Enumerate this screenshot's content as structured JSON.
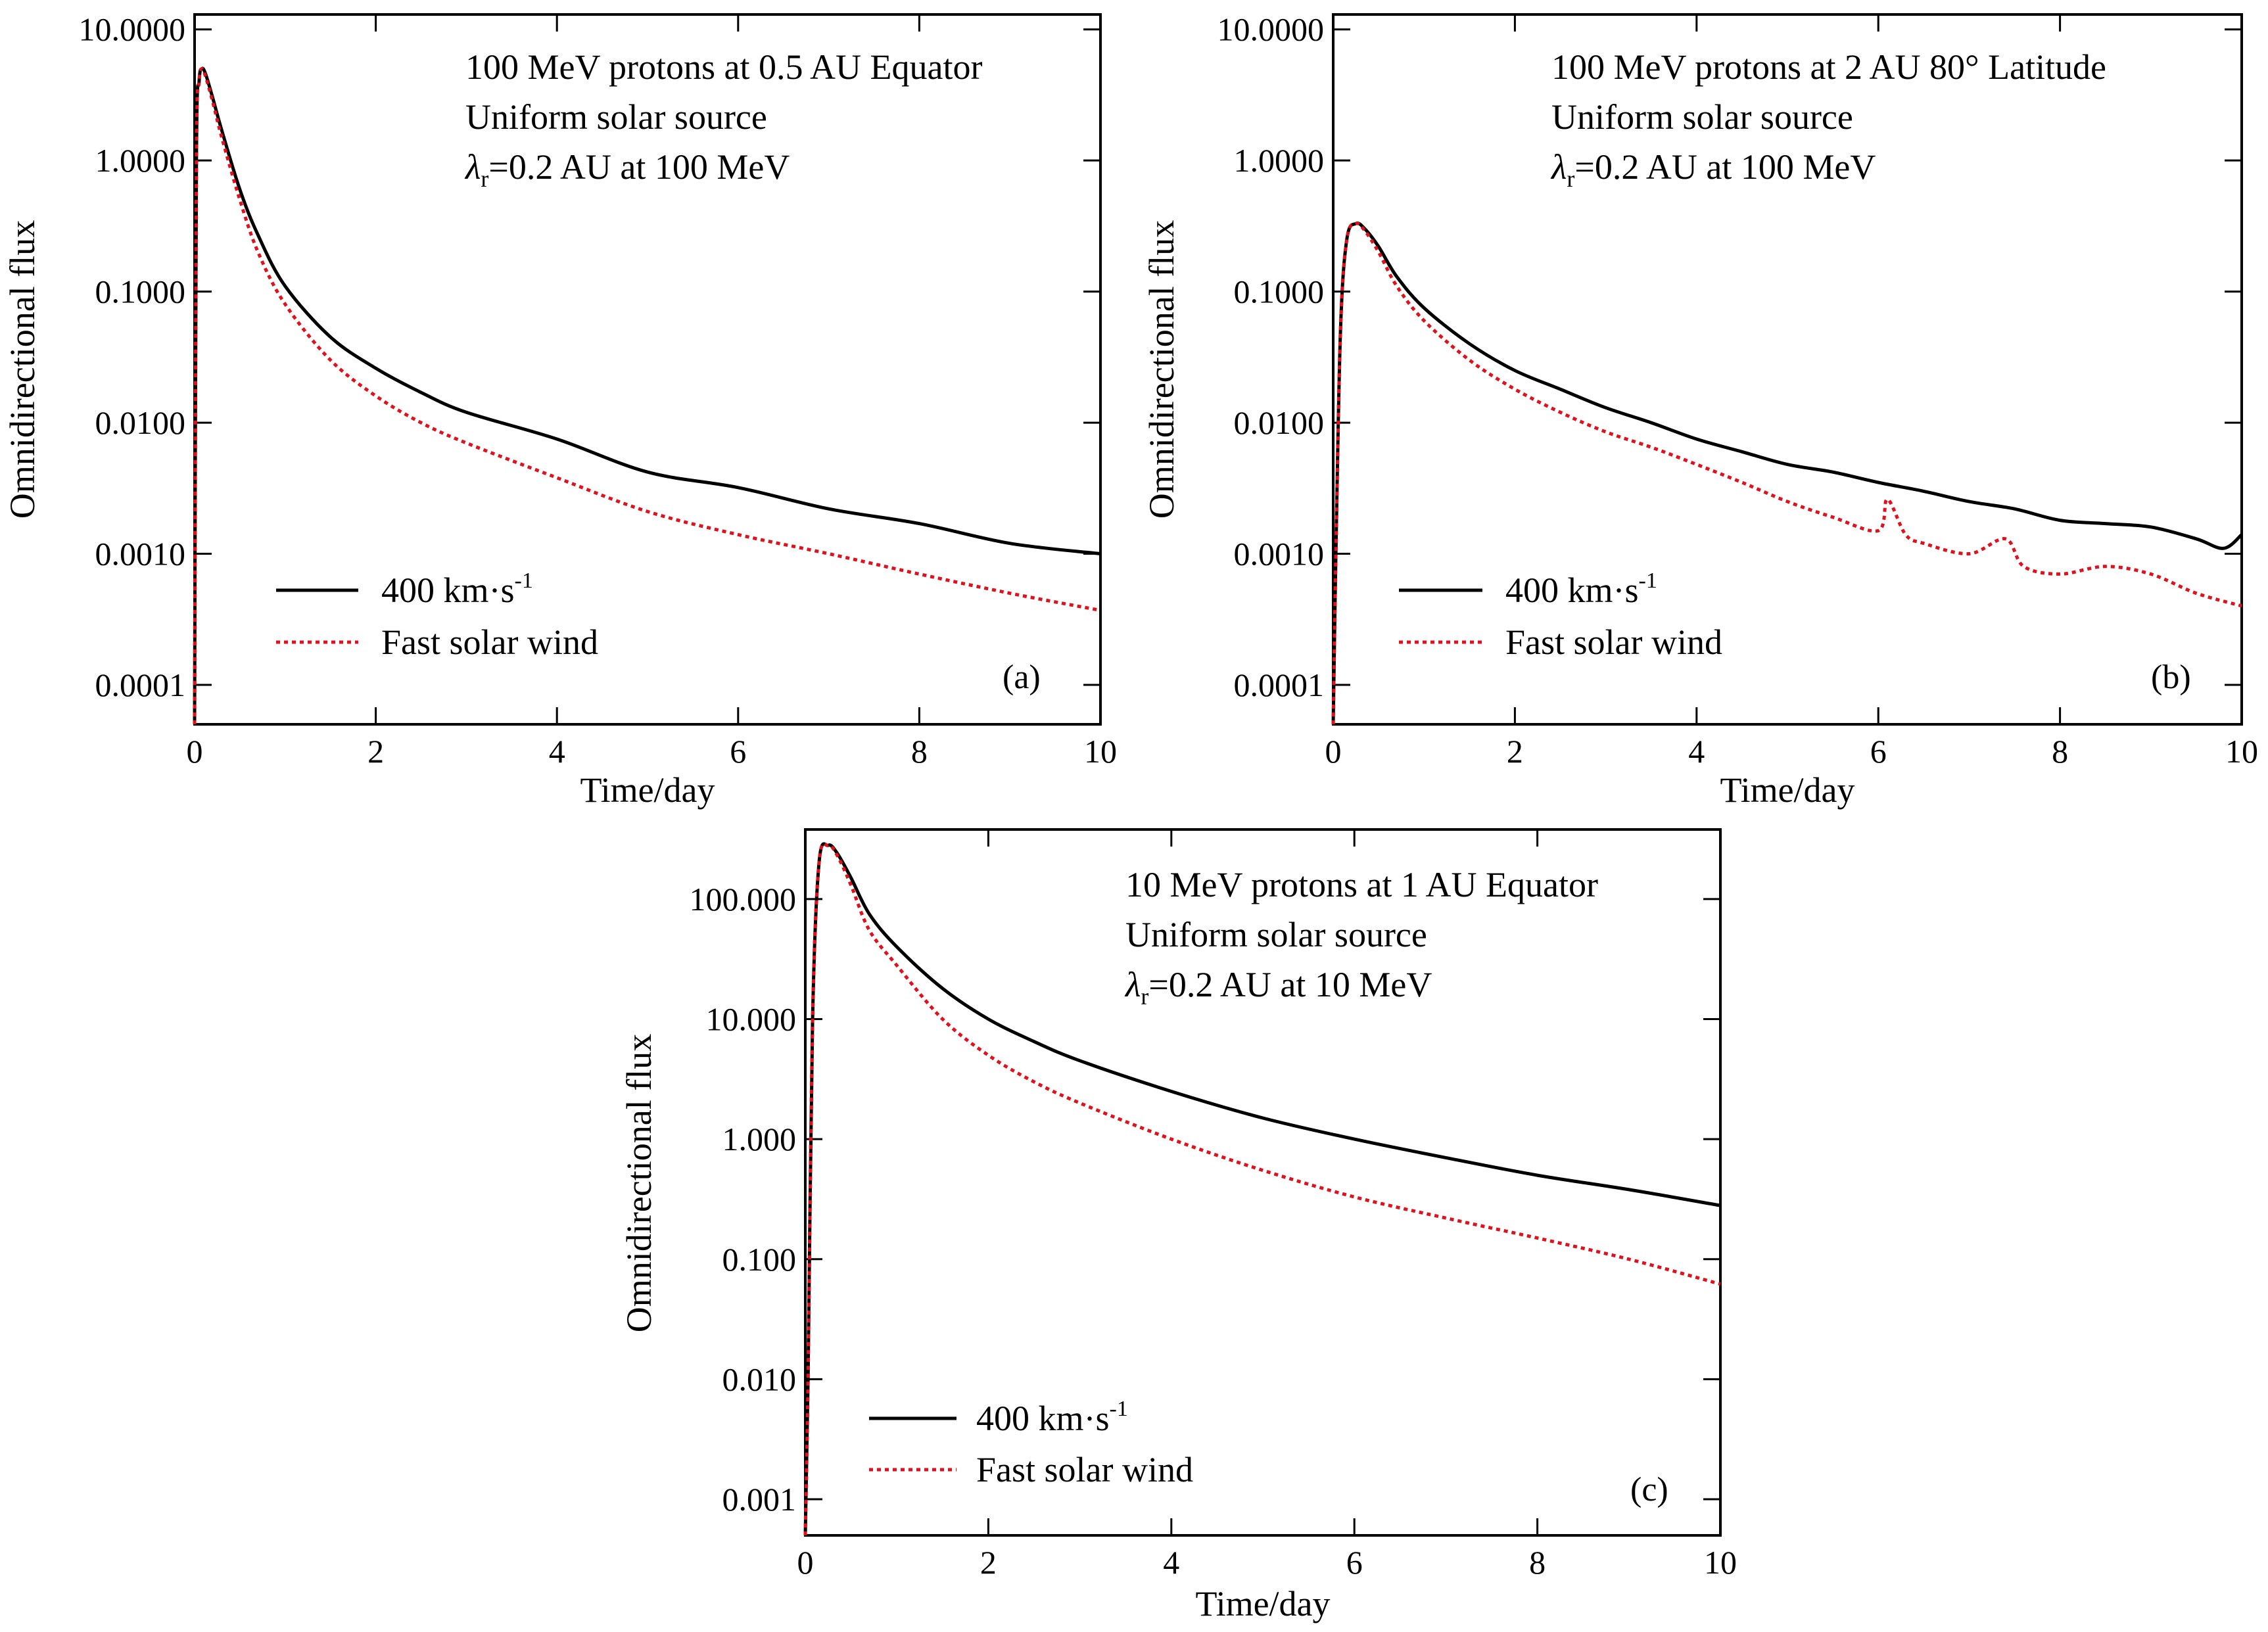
{
  "chart_data": [
    {
      "id": "a",
      "type": "line",
      "yscale": "log",
      "xlim": [
        0,
        10
      ],
      "ylim": [
        5e-05,
        13
      ],
      "xticks": [
        0,
        2,
        4,
        6,
        8,
        10
      ],
      "xtick_labels": [
        "0",
        "2",
        "4",
        "6",
        "8",
        "10"
      ],
      "yticks": [
        10,
        1,
        0.1,
        0.01,
        0.001,
        0.0001
      ],
      "ytick_labels": [
        "10.0000",
        "1.0000",
        "0.1000",
        "0.0100",
        "0.0010",
        "0.0001"
      ],
      "xlabel": "Time/day",
      "ylabel": "Omnidirectional flux",
      "annotation": {
        "line1": "100 MeV protons at 0.5 AU Equator",
        "line2": "Uniform solar source",
        "line3_symbol": "λ",
        "line3_sub": "r",
        "line3_rest": "=0.2 AU at 100 MeV"
      },
      "legend": {
        "solid_label_main": "400 km·s",
        "solid_label_sup": "-1",
        "dotted_label": "Fast solar wind"
      },
      "panel_label": "(a)",
      "series": [
        {
          "name": "400 km·s-1",
          "color": "#000000",
          "style": "solid",
          "x": [
            0.0,
            0.02,
            0.05,
            0.08,
            0.12,
            0.2,
            0.3,
            0.5,
            0.7,
            1.0,
            1.5,
            2.0,
            2.5,
            3.0,
            4.0,
            5.0,
            6.0,
            7.0,
            8.0,
            9.0,
            10.0
          ],
          "y": [
            5e-05,
            1.0,
            4.0,
            5.0,
            4.6,
            3.0,
            1.7,
            0.6,
            0.27,
            0.11,
            0.045,
            0.026,
            0.017,
            0.012,
            0.0075,
            0.0042,
            0.0032,
            0.0022,
            0.0017,
            0.0012,
            0.001
          ]
        },
        {
          "name": "Fast solar wind",
          "color": "#e0101c",
          "style": "dotted",
          "x": [
            0.0,
            0.02,
            0.05,
            0.08,
            0.12,
            0.2,
            0.3,
            0.5,
            0.7,
            1.0,
            1.5,
            2.0,
            2.5,
            3.0,
            4.0,
            5.0,
            6.0,
            7.0,
            8.0,
            9.0,
            10.0
          ],
          "y": [
            5e-05,
            1.0,
            4.0,
            5.0,
            4.4,
            2.8,
            1.5,
            0.5,
            0.2,
            0.08,
            0.03,
            0.016,
            0.01,
            0.007,
            0.0038,
            0.0021,
            0.0014,
            0.001,
            0.0007,
            0.0005,
            0.00037
          ]
        }
      ]
    },
    {
      "id": "b",
      "type": "line",
      "yscale": "log",
      "xlim": [
        0,
        10
      ],
      "ylim": [
        5e-05,
        13
      ],
      "xticks": [
        0,
        2,
        4,
        6,
        8,
        10
      ],
      "xtick_labels": [
        "0",
        "2",
        "4",
        "6",
        "8",
        "10"
      ],
      "yticks": [
        10,
        1,
        0.1,
        0.01,
        0.001,
        0.0001
      ],
      "ytick_labels": [
        "10.0000",
        "1.0000",
        "0.1000",
        "0.0100",
        "0.0010",
        "0.0001"
      ],
      "xlabel": "Time/day",
      "ylabel": "Omnidirectional flux",
      "annotation": {
        "line1": "100 MeV protons at 2 AU 80° Latitude",
        "line2": "Uniform solar source",
        "line3_symbol": "λ",
        "line3_sub": "r",
        "line3_rest": "=0.2 AU at 100 MeV"
      },
      "legend": {
        "solid_label_main": "400 km·s",
        "solid_label_sup": "-1",
        "dotted_label": "Fast solar wind"
      },
      "panel_label": "(b)",
      "series": [
        {
          "name": "400 km·s-1",
          "color": "#000000",
          "style": "solid",
          "x": [
            0.0,
            0.03,
            0.08,
            0.15,
            0.25,
            0.35,
            0.5,
            0.7,
            1.0,
            1.5,
            2.0,
            2.5,
            3.0,
            3.5,
            4.0,
            4.5,
            5.0,
            5.5,
            6.0,
            6.5,
            7.0,
            7.5,
            8.0,
            8.5,
            9.0,
            9.5,
            9.8,
            10.0
          ],
          "y": [
            5e-05,
            0.001,
            0.05,
            0.25,
            0.33,
            0.3,
            0.22,
            0.13,
            0.075,
            0.04,
            0.025,
            0.018,
            0.013,
            0.01,
            0.0075,
            0.006,
            0.0048,
            0.0042,
            0.0035,
            0.003,
            0.0025,
            0.0022,
            0.0018,
            0.0017,
            0.0016,
            0.0013,
            0.0011,
            0.0014
          ]
        },
        {
          "name": "Fast solar wind",
          "color": "#e0101c",
          "style": "dotted",
          "x": [
            0.0,
            0.03,
            0.08,
            0.15,
            0.25,
            0.35,
            0.5,
            0.7,
            1.0,
            1.5,
            2.0,
            2.5,
            3.0,
            3.5,
            4.0,
            4.5,
            5.0,
            5.5,
            6.0,
            6.1,
            6.3,
            6.5,
            7.0,
            7.4,
            7.6,
            8.0,
            8.5,
            9.0,
            9.5,
            10.0
          ],
          "y": [
            5e-05,
            0.001,
            0.05,
            0.25,
            0.33,
            0.29,
            0.2,
            0.11,
            0.06,
            0.03,
            0.018,
            0.012,
            0.0085,
            0.0065,
            0.0048,
            0.0035,
            0.0025,
            0.0019,
            0.0015,
            0.0026,
            0.0014,
            0.0012,
            0.001,
            0.0013,
            0.0008,
            0.0007,
            0.0008,
            0.0007,
            0.0005,
            0.0004
          ]
        }
      ]
    },
    {
      "id": "c",
      "type": "line",
      "yscale": "log",
      "xlim": [
        0,
        10
      ],
      "ylim": [
        0.0005,
        380
      ],
      "xticks": [
        0,
        2,
        4,
        6,
        8,
        10
      ],
      "xtick_labels": [
        "0",
        "2",
        "4",
        "6",
        "8",
        "10"
      ],
      "yticks": [
        100,
        10,
        1,
        0.1,
        0.01,
        0.001
      ],
      "ytick_labels": [
        "100.000",
        "10.000",
        "1.000",
        "0.100",
        "0.010",
        "0.001"
      ],
      "xlabel": "Time/day",
      "ylabel": "Omnidirectional flux",
      "annotation": {
        "line1": "10 MeV protons at 1 AU Equator",
        "line2": "Uniform solar source",
        "line3_symbol": "λ",
        "line3_sub": "r",
        "line3_rest": "=0.2 AU at 10 MeV"
      },
      "legend": {
        "solid_label_main": "400 km·s",
        "solid_label_sup": "-1",
        "dotted_label": "Fast solar wind"
      },
      "panel_label": "(c)",
      "series": [
        {
          "name": "400 km·s-1",
          "color": "#000000",
          "style": "solid",
          "x": [
            0.0,
            0.03,
            0.08,
            0.15,
            0.25,
            0.35,
            0.5,
            0.7,
            1.0,
            1.5,
            2.0,
            2.5,
            3.0,
            4.0,
            5.0,
            6.0,
            7.0,
            8.0,
            9.0,
            10.0
          ],
          "y": [
            0.0005,
            0.01,
            10,
            200,
            280,
            240,
            150,
            75,
            40,
            18,
            10,
            6.5,
            4.5,
            2.5,
            1.5,
            1.0,
            0.7,
            0.5,
            0.38,
            0.28
          ]
        },
        {
          "name": "Fast solar wind",
          "color": "#e0101c",
          "style": "dotted",
          "x": [
            0.0,
            0.03,
            0.08,
            0.15,
            0.25,
            0.35,
            0.5,
            0.7,
            1.0,
            1.5,
            2.0,
            2.5,
            3.0,
            4.0,
            5.0,
            6.0,
            7.0,
            8.0,
            9.0,
            10.0
          ],
          "y": [
            0.0005,
            0.01,
            10,
            200,
            280,
            230,
            130,
            55,
            28,
            10,
            5.0,
            3.0,
            2.0,
            1.0,
            0.55,
            0.33,
            0.22,
            0.15,
            0.1,
            0.062
          ]
        }
      ]
    }
  ]
}
